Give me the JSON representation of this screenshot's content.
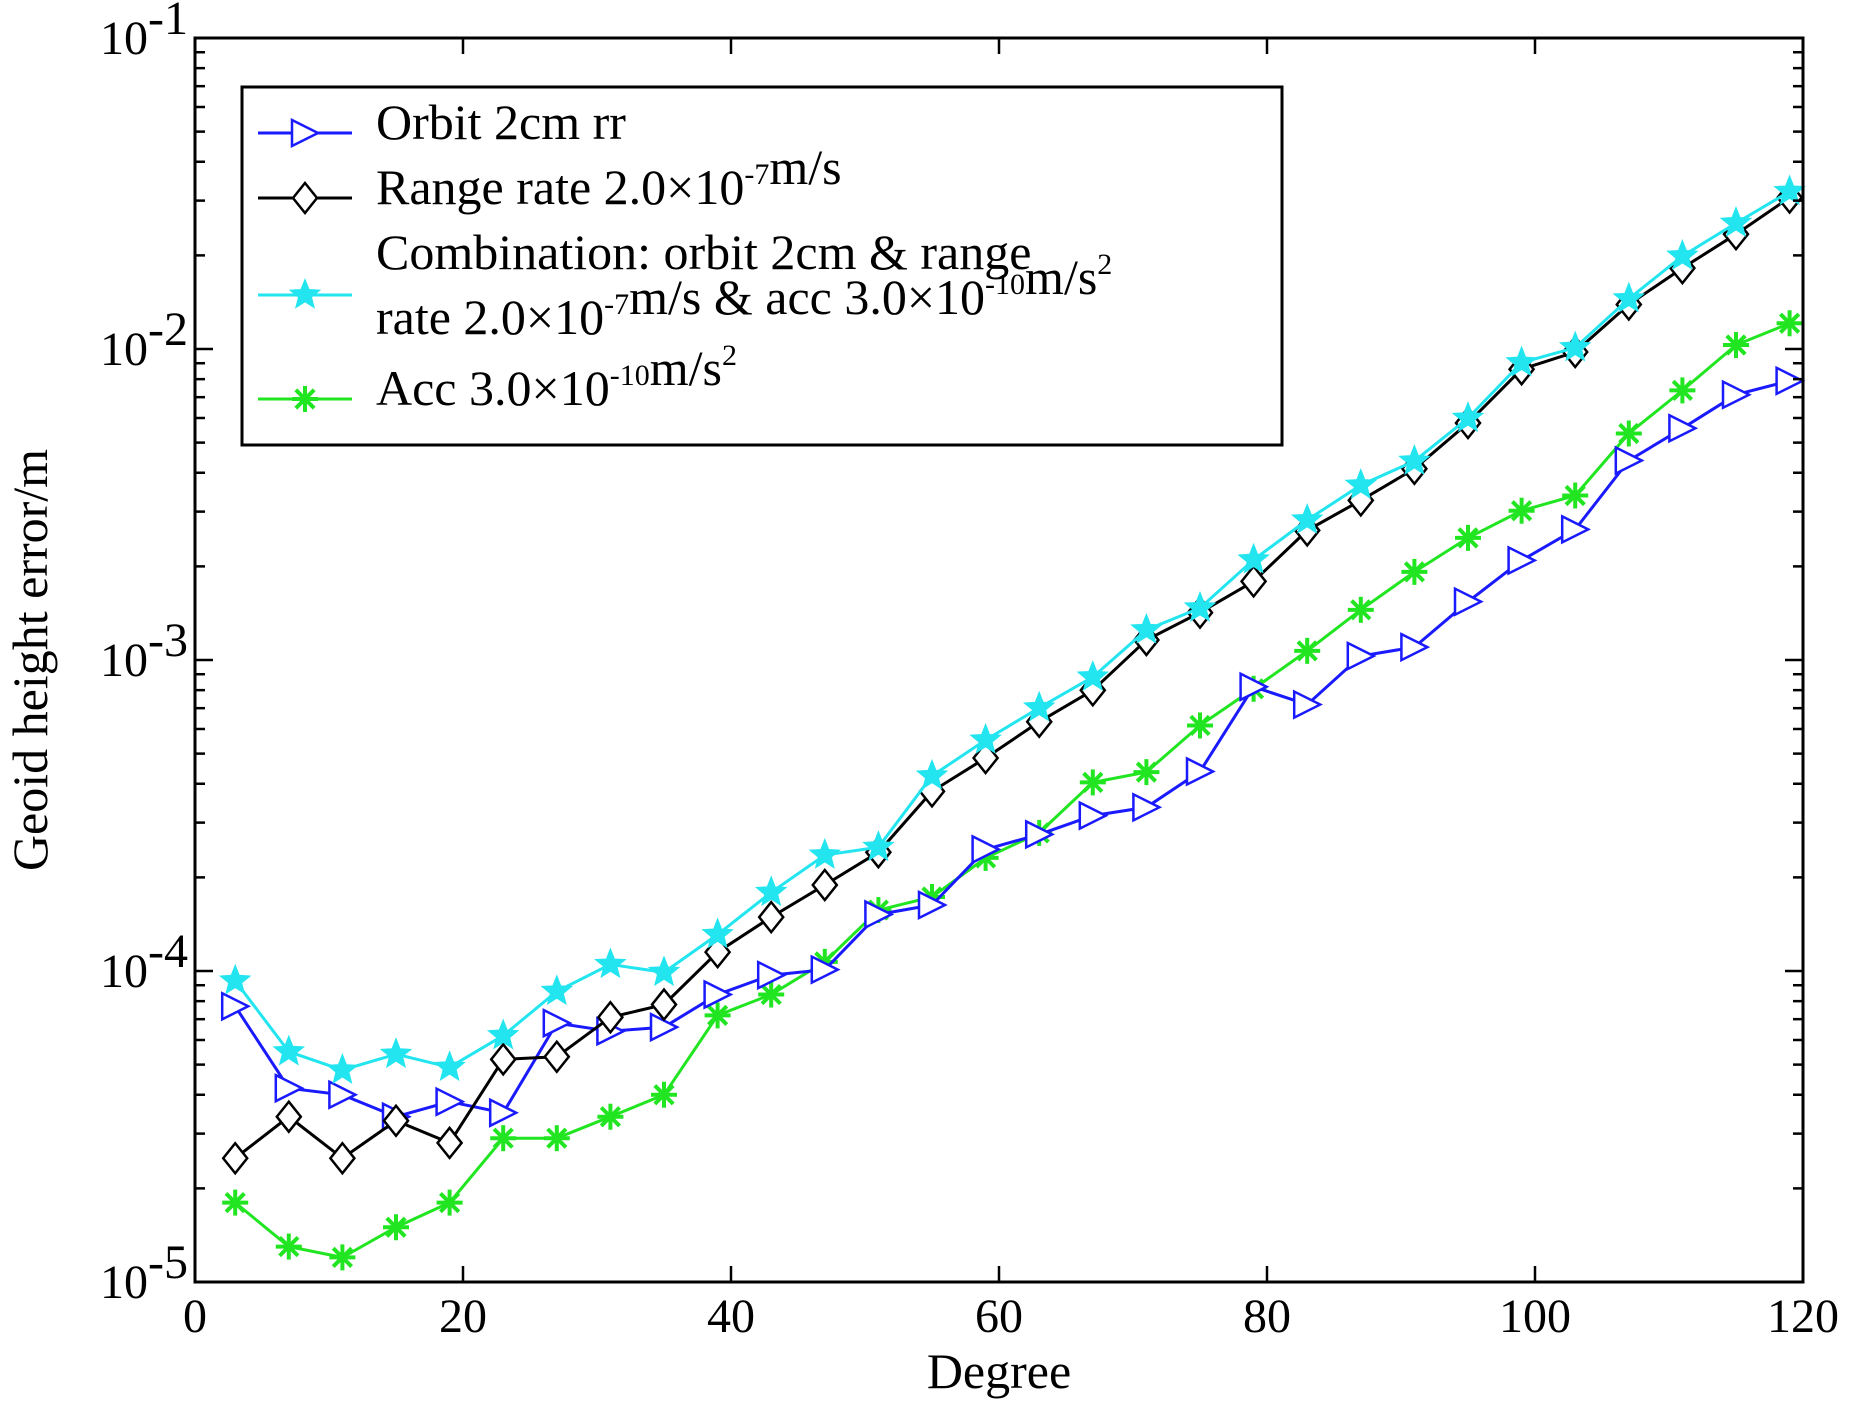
{
  "chart_data": {
    "type": "line",
    "title": "",
    "xlabel": "Degree",
    "ylabel": "Geoid height error/m",
    "xlim": [
      0,
      120
    ],
    "ylim": [
      1e-05,
      0.1
    ],
    "yscale": "log",
    "grid": false,
    "legend_position": "top-left",
    "x_ticks": [
      "0",
      "20",
      "40",
      "60",
      "80",
      "100",
      "120"
    ],
    "y_ticks": [
      {
        "base": "10",
        "exp": "-5"
      },
      {
        "base": "10",
        "exp": "-4"
      },
      {
        "base": "10",
        "exp": "-3"
      },
      {
        "base": "10",
        "exp": "-2"
      },
      {
        "base": "10",
        "exp": "-1"
      }
    ],
    "x": [
      3,
      7,
      11,
      15,
      19,
      23,
      27,
      31,
      35,
      39,
      43,
      47,
      51,
      55,
      59,
      63,
      67,
      71,
      75,
      79,
      83,
      87,
      91,
      95,
      99,
      103,
      107,
      111,
      115,
      119
    ],
    "series": [
      {
        "name": "Orbit 2cm rr",
        "color": "#1a1aff",
        "marker": "triangle-right",
        "values": [
          7.7e-05,
          4.2e-05,
          4e-05,
          3.4e-05,
          3.8e-05,
          3.5e-05,
          6.8e-05,
          6.4e-05,
          6.6e-05,
          8.4e-05,
          9.7e-05,
          0.000101,
          0.000152,
          0.000163,
          0.000246,
          0.000275,
          0.000316,
          0.000336,
          0.000438,
          0.00082,
          0.000719,
          0.00103,
          0.0011,
          0.00154,
          0.00209,
          0.00263,
          0.00438,
          0.00556,
          0.00713,
          0.0079
        ]
      },
      {
        "name": "Range rate 2.0×10-7m/s",
        "color": "#000000",
        "marker": "diamond",
        "values": [
          2.5e-05,
          3.4e-05,
          2.5e-05,
          3.3e-05,
          2.8e-05,
          5.2e-05,
          5.3e-05,
          7.1e-05,
          7.8e-05,
          0.000115,
          0.000149,
          0.000189,
          0.000241,
          0.000378,
          0.000484,
          0.000633,
          0.000799,
          0.00116,
          0.00142,
          0.00179,
          0.00261,
          0.00326,
          0.00412,
          0.00578,
          0.00861,
          0.00978,
          0.0139,
          0.0182,
          0.0234,
          0.0307
        ]
      },
      {
        "name": "Combination: orbit 2cm & range rate 2.0×10-7m/s & acc 3.0×10-10m/s2",
        "color": "#22e5f0",
        "marker": "star5",
        "values": [
          9.3e-05,
          5.5e-05,
          4.8e-05,
          5.4e-05,
          4.9e-05,
          6.2e-05,
          8.6e-05,
          0.000105,
          9.9e-05,
          0.000131,
          0.000179,
          0.000236,
          0.00025,
          0.000424,
          0.000553,
          0.000702,
          0.000882,
          0.00125,
          0.00147,
          0.0021,
          0.00282,
          0.00365,
          0.00436,
          0.00599,
          0.00904,
          0.0101,
          0.0145,
          0.0199,
          0.0254,
          0.0321
        ]
      },
      {
        "name": "Acc 3.0×10-10m/s2",
        "color": "#22e522",
        "marker": "asterisk",
        "values": [
          1.8e-05,
          1.3e-05,
          1.2e-05,
          1.5e-05,
          1.8e-05,
          2.9e-05,
          2.9e-05,
          3.4e-05,
          4e-05,
          7.2e-05,
          8.4e-05,
          0.000107,
          0.000157,
          0.000173,
          0.000231,
          0.000278,
          0.000404,
          0.000436,
          0.000616,
          0.000808,
          0.00107,
          0.00145,
          0.00192,
          0.00247,
          0.00302,
          0.00338,
          0.00535,
          0.00736,
          0.0103,
          0.0121
        ]
      }
    ]
  },
  "legend": {
    "items": [
      {
        "parts": [
          {
            "t": "Orbit 2cm rr"
          }
        ]
      },
      {
        "parts": [
          {
            "t": "Range rate 2.0×10"
          },
          {
            "t": "-7",
            "sup": true
          },
          {
            "t": "m/s"
          }
        ]
      },
      {
        "parts": [
          {
            "t": "Combination: orbit 2cm & range"
          }
        ]
      },
      {
        "parts": [
          {
            "t": "rate 2.0×10"
          },
          {
            "t": "-7",
            "sup": true
          },
          {
            "t": "m/s & acc 3.0×10"
          },
          {
            "t": "-10",
            "sup": true
          },
          {
            "t": "m/s"
          },
          {
            "t": "2",
            "sup": true
          }
        ]
      },
      {
        "parts": [
          {
            "t": "Acc 3.0×10"
          },
          {
            "t": "-10",
            "sup": true
          },
          {
            "t": "m/s"
          },
          {
            "t": "2",
            "sup": true
          }
        ]
      }
    ]
  }
}
